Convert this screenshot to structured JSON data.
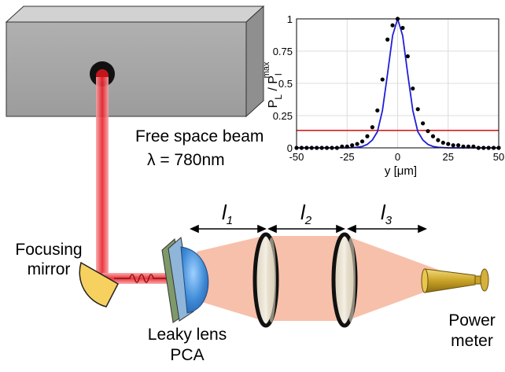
{
  "labels": {
    "beam_line1": "Free space beam",
    "beam_line2": "λ = 780nm",
    "mirror_line1": "Focusing",
    "mirror_line2": "mirror",
    "lens_line1": "Leaky lens",
    "lens_line2": "PCA",
    "meter_line1": "Power",
    "meter_line2": "meter",
    "l1_letter": "l",
    "l1_sub": "1",
    "l2_letter": "l",
    "l2_sub": "2",
    "l3_letter": "l",
    "l3_sub": "3"
  },
  "colors": {
    "laser_red": "#e8202a",
    "beam_salmon": "#f6b59b",
    "mirror_yellow": "#f7d15f",
    "lens_blue": "#4f9fe0",
    "box_gray": "#a6a6a6",
    "fit_blue": "#1f1fd8",
    "threshold_red": "#d62020",
    "meter_gold": "#c9a227"
  },
  "chart_data": {
    "type": "scatter",
    "xlabel": "y [μm]",
    "ylabel_main": "P",
    "ylabel_sub1": "L",
    "ylabel_mid": " / P",
    "ylabel_sub2": "l",
    "ylabel_sup2": "max",
    "xlim": [
      -50,
      50
    ],
    "ylim": [
      0,
      1
    ],
    "xticks": [
      "-50",
      "-25",
      "0",
      "25",
      "50"
    ],
    "yticks": [
      "0",
      "0.25",
      "0.5",
      "0.75",
      "1"
    ],
    "grid": true,
    "threshold": 0.135,
    "series": [
      {
        "kind": "points",
        "x": [
          -50,
          -47.5,
          -45,
          -42.5,
          -40,
          -37.5,
          -35,
          -32.5,
          -30,
          -27.5,
          -25,
          -22.5,
          -20,
          -17.5,
          -15,
          -12.5,
          -10,
          -7.5,
          -5,
          -2.5,
          0,
          2.5,
          5,
          7.5,
          10,
          12.5,
          15,
          17.5,
          20,
          22.5,
          25,
          27.5,
          30,
          32.5,
          35,
          37.5,
          40,
          42.5,
          45,
          47.5,
          50
        ],
        "y": [
          0.0,
          0.0,
          0.0,
          0.0,
          0.0,
          0.0,
          0.0,
          0.0,
          0.0,
          0.01,
          0.01,
          0.02,
          0.03,
          0.05,
          0.09,
          0.16,
          0.29,
          0.53,
          0.84,
          0.95,
          1.0,
          0.93,
          0.71,
          0.46,
          0.3,
          0.19,
          0.13,
          0.09,
          0.06,
          0.04,
          0.03,
          0.02,
          0.02,
          0.01,
          0.01,
          0.01,
          0.0,
          0.0,
          0.0,
          0.0,
          0.0
        ]
      },
      {
        "kind": "line",
        "x": [
          -50,
          -40,
          -30,
          -25,
          -20,
          -17.5,
          -15,
          -12.5,
          -10,
          -7.5,
          -5,
          -2.5,
          0,
          2.5,
          5,
          7.5,
          10,
          12.5,
          15,
          17.5,
          20,
          25,
          30,
          40,
          50
        ],
        "y": [
          0.0,
          0.0,
          0.0,
          0.0,
          0.004,
          0.011,
          0.027,
          0.061,
          0.125,
          0.29,
          0.57,
          0.87,
          1.0,
          0.87,
          0.57,
          0.29,
          0.125,
          0.061,
          0.027,
          0.011,
          0.004,
          0.0,
          0.0,
          0.0,
          0.0
        ]
      }
    ]
  }
}
